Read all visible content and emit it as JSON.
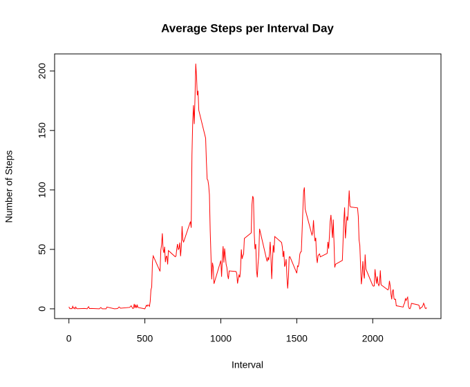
{
  "chart_data": {
    "type": "line",
    "title": "Average Steps per Interval Day",
    "x_label": "Interval",
    "y_label": "Number of Steps",
    "xlim": [
      -94.2,
      2449.2
    ],
    "ylim": [
      -8.2,
      214.4
    ],
    "xticks": [
      0,
      500,
      1000,
      1500,
      2000
    ],
    "yticks": [
      0,
      50,
      100,
      150,
      200
    ],
    "series": [
      {
        "name": "steps",
        "color": "#ff0000",
        "x": [
          0,
          5,
          10,
          15,
          20,
          25,
          30,
          35,
          40,
          45,
          50,
          55,
          100,
          110,
          120,
          125,
          130,
          135,
          140,
          150,
          200,
          210,
          220,
          230,
          245,
          250,
          300,
          320,
          330,
          340,
          400,
          410,
          420,
          425,
          430,
          435,
          440,
          445,
          450,
          455,
          500,
          510,
          515,
          520,
          525,
          530,
          535,
          540,
          545,
          550,
          555,
          600,
          605,
          610,
          615,
          620,
          625,
          630,
          635,
          640,
          645,
          650,
          655,
          700,
          705,
          710,
          715,
          720,
          725,
          730,
          735,
          740,
          745,
          750,
          755,
          800,
          805,
          810,
          815,
          820,
          825,
          830,
          835,
          840,
          845,
          850,
          855,
          900,
          905,
          910,
          915,
          920,
          925,
          930,
          935,
          940,
          945,
          950,
          955,
          1000,
          1005,
          1010,
          1015,
          1020,
          1025,
          1030,
          1035,
          1040,
          1045,
          1050,
          1055,
          1100,
          1105,
          1110,
          1115,
          1120,
          1125,
          1130,
          1135,
          1140,
          1145,
          1150,
          1155,
          1200,
          1205,
          1210,
          1215,
          1220,
          1225,
          1230,
          1235,
          1240,
          1245,
          1250,
          1255,
          1300,
          1305,
          1310,
          1315,
          1320,
          1325,
          1330,
          1335,
          1340,
          1345,
          1350,
          1355,
          1400,
          1405,
          1410,
          1415,
          1420,
          1425,
          1430,
          1435,
          1440,
          1445,
          1450,
          1455,
          1500,
          1505,
          1510,
          1515,
          1520,
          1525,
          1530,
          1535,
          1540,
          1545,
          1550,
          1555,
          1600,
          1605,
          1610,
          1615,
          1620,
          1625,
          1630,
          1635,
          1640,
          1645,
          1650,
          1655,
          1700,
          1705,
          1710,
          1715,
          1720,
          1725,
          1730,
          1735,
          1740,
          1745,
          1750,
          1755,
          1800,
          1805,
          1810,
          1815,
          1820,
          1825,
          1830,
          1835,
          1840,
          1845,
          1850,
          1855,
          1900,
          1905,
          1910,
          1915,
          1920,
          1925,
          1930,
          1935,
          1940,
          1945,
          1950,
          1955,
          2000,
          2005,
          2010,
          2015,
          2020,
          2025,
          2030,
          2035,
          2040,
          2045,
          2050,
          2055,
          2100,
          2105,
          2110,
          2115,
          2120,
          2125,
          2130,
          2135,
          2140,
          2145,
          2150,
          2155,
          2200,
          2205,
          2210,
          2215,
          2220,
          2225,
          2230,
          2235,
          2240,
          2245,
          2250,
          2255,
          2300,
          2305,
          2310,
          2315,
          2320,
          2325,
          2330,
          2335,
          2340,
          2345,
          2350,
          2355
        ],
        "values": [
          1.7,
          0.3,
          0.1,
          0.2,
          0.1,
          2.1,
          0.5,
          0.9,
          0,
          1.5,
          0.3,
          0.1,
          0.3,
          0.2,
          0,
          1.1,
          1.8,
          0.2,
          0.2,
          0.3,
          0,
          1.1,
          0,
          0,
          0,
          1.5,
          0,
          0.2,
          1.6,
          0.5,
          1.2,
          2.6,
          0.3,
          0.4,
          4.1,
          0.7,
          3.5,
          0.8,
          3.1,
          1.1,
          0,
          3.0,
          2.2,
          3.3,
          3.0,
          2.1,
          6.1,
          16,
          18.3,
          39.5,
          44.5,
          31.5,
          49.3,
          53.8,
          63.5,
          50,
          47.1,
          52.2,
          39.3,
          44,
          44.2,
          37.4,
          49,
          43.8,
          44.4,
          50.5,
          54.5,
          49.9,
          50.9,
          55.7,
          44.3,
          52.3,
          69.5,
          57.8,
          56.2,
          73.4,
          68.2,
          129.4,
          157.5,
          171.2,
          155.4,
          177.3,
          206.2,
          195.9,
          179.6,
          183.4,
          167.0,
          143.5,
          124.0,
          109.1,
          108.1,
          103.7,
          95.96,
          66.2,
          45.2,
          24.8,
          38.8,
          34.98,
          21.1,
          40.6,
          26.98,
          42.4,
          52.7,
          38.9,
          50.8,
          44.3,
          37.4,
          34.7,
          28.3,
          25.1,
          31.9,
          31.4,
          29.7,
          21.3,
          25.5,
          28.4,
          26.5,
          33.4,
          50.0,
          42.0,
          44.6,
          46.0,
          59.2,
          63.9,
          87.7,
          94.8,
          92.8,
          63.4,
          50.2,
          54.5,
          32.4,
          26.5,
          37.7,
          45.1,
          67.3,
          42.3,
          39.9,
          43.3,
          40.98,
          46.2,
          56.4,
          42.8,
          25.1,
          39.97,
          53.5,
          47.3,
          60.8,
          55.8,
          51.96,
          43.6,
          48.7,
          35.5,
          37.5,
          41.8,
          27.5,
          17.1,
          26.1,
          43.6,
          43.8,
          30.0,
          36.1,
          35.5,
          38.8,
          45.96,
          47.8,
          48.1,
          65.3,
          82.9,
          98.7,
          102.1,
          83.96,
          62.1,
          64.1,
          74.5,
          63.2,
          56.9,
          59.8,
          43.9,
          38.6,
          44.7,
          45.5,
          46.2,
          43.7,
          46.6,
          56.3,
          50.7,
          61.2,
          73.4,
          79.0,
          68.9,
          59.7,
          75.1,
          56.5,
          34.8,
          37.5,
          40.7,
          58.0,
          74.7,
          85.3,
          59.3,
          67.8,
          77.7,
          74.2,
          85.3,
          99.5,
          86.6,
          85.6,
          84.9,
          77.8,
          58.0,
          53.4,
          36.3,
          20.7,
          27.4,
          40.0,
          30.2,
          25.5,
          45.7,
          33.5,
          19.6,
          19.0,
          19.3,
          33.3,
          26.8,
          21.2,
          27.3,
          21.3,
          19.5,
          21.3,
          32.3,
          20.2,
          15.9,
          17.2,
          23.5,
          19.2,
          12.5,
          8.0,
          14.7,
          16.3,
          8.7,
          7.8,
          8.1,
          2.6,
          1.5,
          3.7,
          4.8,
          8.5,
          7.1,
          8.7,
          9.8,
          2.2,
          0.3,
          0.1,
          1.6,
          4.6,
          3.3,
          2.8,
          0,
          0.8,
          1.0,
          1.6,
          2.6,
          4.7,
          3.3,
          0.6,
          0.2,
          1.1
        ]
      }
    ]
  }
}
